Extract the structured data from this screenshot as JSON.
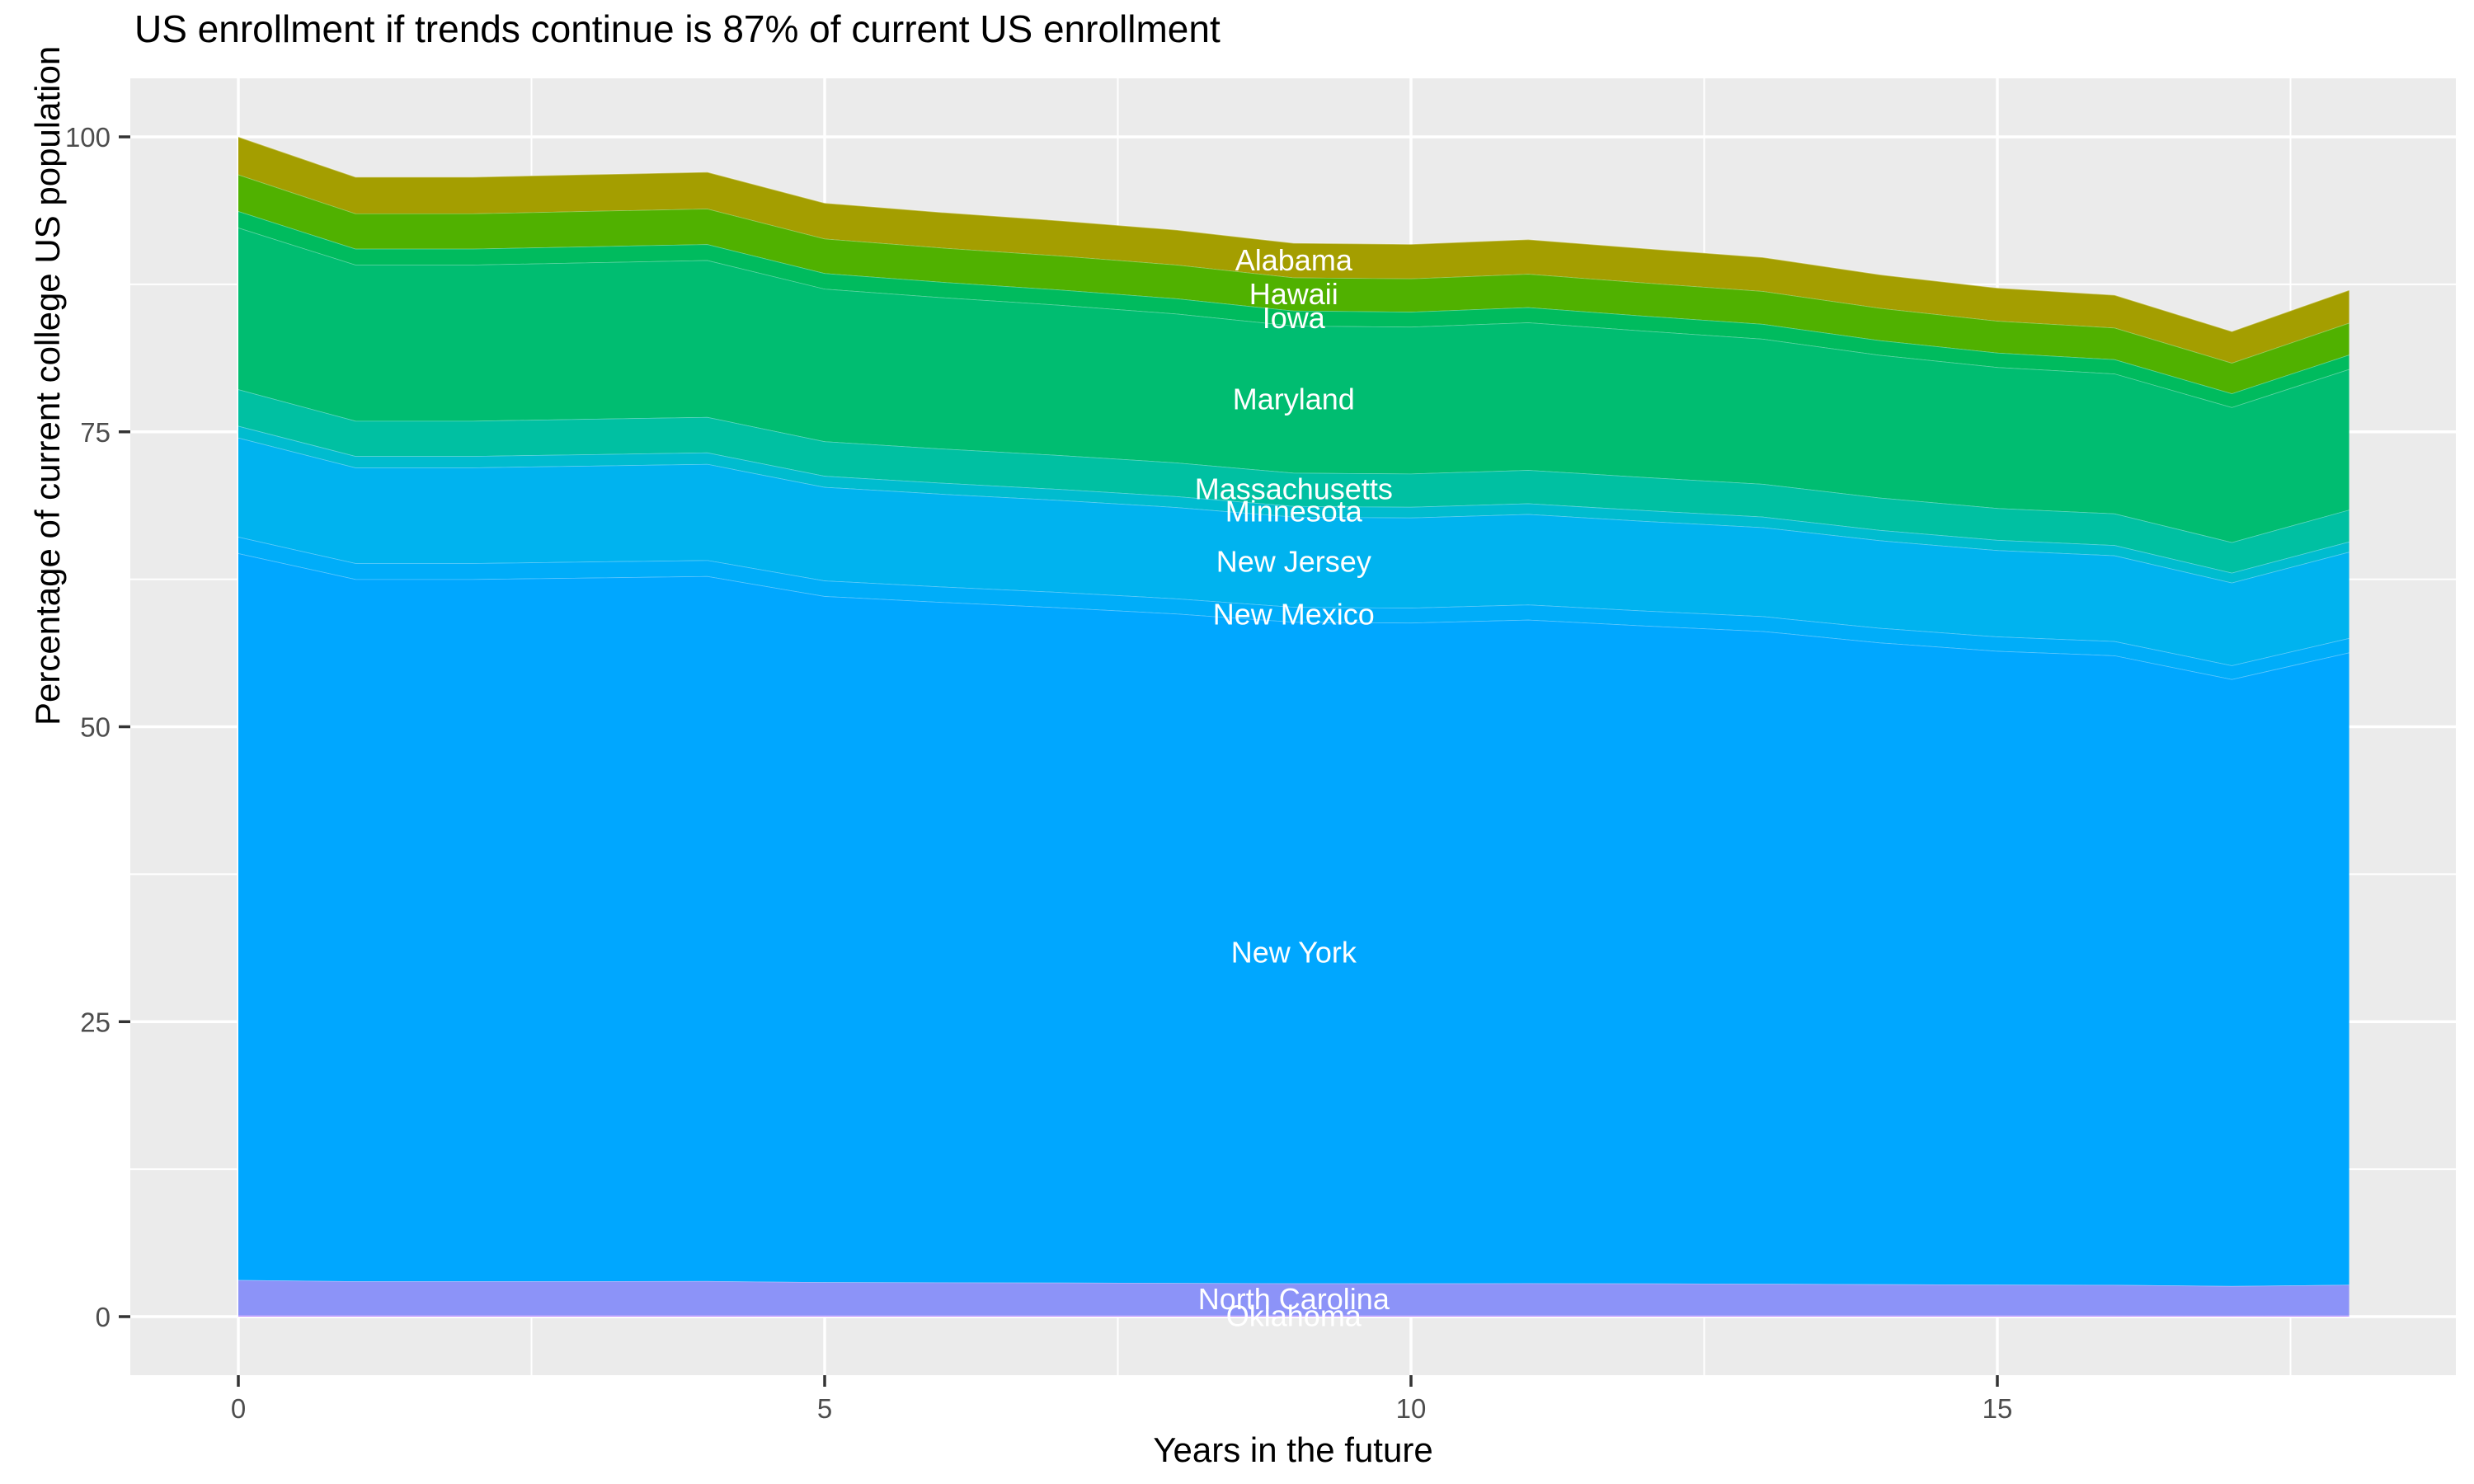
{
  "chart_data": {
    "type": "area",
    "title": "US enrollment if trends continue is 87% of current US enrollment",
    "xlabel": "Years in the future",
    "ylabel": "Percentage of current college US population",
    "x": [
      0,
      1,
      2,
      3,
      4,
      5,
      6,
      7,
      8,
      9,
      10,
      11,
      12,
      13,
      14,
      15,
      16,
      17,
      18
    ],
    "x_ticks": [
      0,
      5,
      10,
      15
    ],
    "y_ticks": [
      0,
      25,
      50,
      75,
      100
    ],
    "xlim": [
      -0.92,
      18.92
    ],
    "ylim": [
      -5,
      105
    ],
    "grid": "white major and minor gridlines on gray panel",
    "legend": "none - direct white labels on areas at x=9",
    "label_x": 9,
    "totals": [
      100.0,
      96.6,
      96.6,
      96.8,
      97.0,
      94.4,
      93.6,
      92.9,
      92.1,
      91.0,
      90.9,
      91.3,
      90.5,
      89.8,
      88.3,
      87.2,
      86.6,
      83.5,
      87.0
    ],
    "series": [
      {
        "name": "Alabama",
        "color": "#A49E00",
        "values": [
          3.2,
          3.09,
          3.09,
          3.1,
          3.1,
          3.02,
          3.0,
          2.97,
          2.95,
          2.91,
          2.91,
          2.92,
          2.9,
          2.87,
          2.83,
          2.79,
          2.77,
          2.67,
          2.78
        ]
      },
      {
        "name": "Hawaii",
        "color": "#50B100",
        "values": [
          3.1,
          2.99,
          2.99,
          3.0,
          3.01,
          2.93,
          2.9,
          2.88,
          2.86,
          2.82,
          2.82,
          2.83,
          2.81,
          2.78,
          2.74,
          2.7,
          2.68,
          2.59,
          2.7
        ]
      },
      {
        "name": "Iowa",
        "color": "#00BB5E",
        "values": [
          1.4,
          1.35,
          1.35,
          1.36,
          1.36,
          1.32,
          1.31,
          1.3,
          1.29,
          1.27,
          1.27,
          1.28,
          1.27,
          1.26,
          1.24,
          1.22,
          1.21,
          1.17,
          1.22
        ]
      },
      {
        "name": "Maryland",
        "color": "#00BD71",
        "values": [
          13.7,
          13.23,
          13.23,
          13.26,
          13.29,
          12.93,
          12.82,
          12.73,
          12.62,
          12.47,
          12.45,
          12.51,
          12.4,
          12.3,
          12.1,
          11.95,
          11.86,
          11.44,
          11.92
        ]
      },
      {
        "name": "Massachusetts",
        "color": "#00C0A2",
        "values": [
          3.1,
          2.99,
          2.99,
          3.0,
          3.01,
          2.93,
          2.9,
          2.88,
          2.86,
          2.82,
          2.82,
          2.83,
          2.81,
          2.78,
          2.74,
          2.7,
          2.68,
          2.59,
          2.7
        ]
      },
      {
        "name": "Minnesota",
        "color": "#00BCCF",
        "values": [
          1.0,
          0.97,
          0.97,
          0.97,
          0.97,
          0.94,
          0.94,
          0.93,
          0.92,
          0.91,
          0.91,
          0.91,
          0.91,
          0.9,
          0.88,
          0.87,
          0.87,
          0.84,
          0.87
        ]
      },
      {
        "name": "New Jersey",
        "color": "#00B3EF",
        "values": [
          8.4,
          8.11,
          8.11,
          8.13,
          8.15,
          7.93,
          7.86,
          7.8,
          7.74,
          7.64,
          7.64,
          7.67,
          7.6,
          7.54,
          7.42,
          7.32,
          7.27,
          7.01,
          7.31
        ]
      },
      {
        "name": "New Mexico",
        "color": "#00ADF9",
        "values": [
          1.4,
          1.35,
          1.35,
          1.36,
          1.36,
          1.32,
          1.31,
          1.3,
          1.29,
          1.27,
          1.27,
          1.28,
          1.27,
          1.26,
          1.24,
          1.22,
          1.21,
          1.17,
          1.22
        ]
      },
      {
        "name": "New York",
        "color": "#00A7FF",
        "values": [
          61.6,
          59.51,
          59.51,
          59.63,
          59.75,
          58.15,
          57.66,
          57.23,
          56.73,
          56.06,
          55.99,
          56.24,
          55.75,
          55.32,
          54.39,
          53.71,
          53.35,
          51.44,
          53.59
        ]
      },
      {
        "name": "North Carolina",
        "color": "#8C93F8",
        "values": [
          3.0,
          2.9,
          2.9,
          2.9,
          2.91,
          2.83,
          2.81,
          2.79,
          2.76,
          2.73,
          2.73,
          2.74,
          2.72,
          2.69,
          2.65,
          2.62,
          2.6,
          2.51,
          2.61
        ]
      },
      {
        "name": "Oklahoma",
        "color": "#B983FF",
        "values": [
          0.1,
          0.1,
          0.1,
          0.1,
          0.1,
          0.09,
          0.09,
          0.09,
          0.09,
          0.09,
          0.09,
          0.09,
          0.09,
          0.09,
          0.09,
          0.09,
          0.09,
          0.08,
          0.09
        ]
      }
    ],
    "theme": {
      "panel_bg": "#EBEBEB",
      "grid_color": "#FFFFFF",
      "tick_color": "#333333",
      "tick_label_color": "#4D4D4D",
      "area_label_color": "#FFFFFF",
      "page_bg": "#FFFFFF"
    }
  }
}
